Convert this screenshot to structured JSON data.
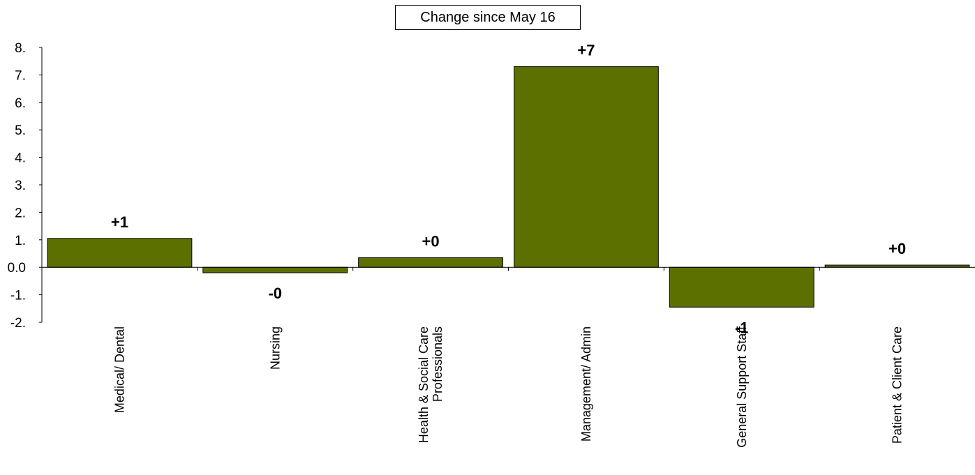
{
  "chart_data": {
    "type": "bar",
    "title": "Change since May 16",
    "xlabel": "",
    "ylabel": "",
    "categories": [
      "Medical/ Dental",
      "Nursing",
      "Health & Social Care Professionals",
      "Management/ Admin",
      "General Support Staff",
      "Patient & Client Care"
    ],
    "category_lines": [
      [
        "Medical/ Dental"
      ],
      [
        "Nursing"
      ],
      [
        "Health & Social Care",
        "Professionals"
      ],
      [
        "Management/ Admin"
      ],
      [
        "General Support Staff"
      ],
      [
        "Patient & Client Care"
      ]
    ],
    "values": [
      1.05,
      -0.2,
      0.35,
      7.3,
      -1.45,
      0.08
    ],
    "data_labels": [
      "+1",
      "-0",
      "+0",
      "+7",
      "-1",
      "+0"
    ],
    "yticks": [
      8,
      7,
      6,
      5,
      4,
      3,
      2,
      1,
      0,
      -1,
      -2
    ],
    "ytick_labels": [
      "8.",
      "7.",
      "6.",
      "5.",
      "4.",
      "3.",
      "2.",
      "1.",
      "0.0",
      "-1.",
      "-2."
    ],
    "ylim": [
      -2,
      8
    ],
    "grid": false,
    "legend": "none",
    "bar_color": "#5c7000"
  }
}
